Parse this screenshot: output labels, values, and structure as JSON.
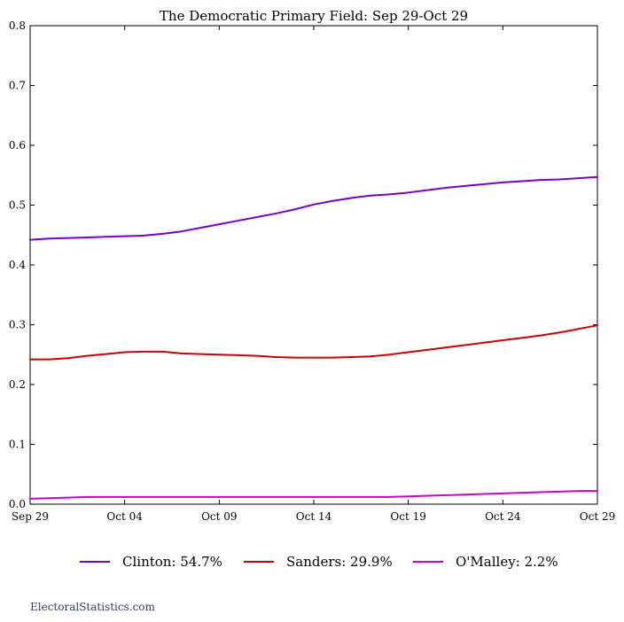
{
  "chart_data": {
    "type": "line",
    "title": "The Democratic Primary Field: Sep 29-Oct 29",
    "xlabel": "",
    "ylabel": "",
    "x_tick_labels": [
      "Sep 29",
      "Oct 04",
      "Oct 09",
      "Oct 14",
      "Oct 19",
      "Oct 24",
      "Oct 29"
    ],
    "x_tick_days": [
      0,
      5,
      10,
      15,
      20,
      25,
      30
    ],
    "xlim": [
      0,
      30
    ],
    "y_ticks": [
      0.0,
      0.1,
      0.2,
      0.3,
      0.4,
      0.5,
      0.6,
      0.7,
      0.8
    ],
    "y_tick_labels": [
      "0.0",
      "0.1",
      "0.2",
      "0.3",
      "0.4",
      "0.5",
      "0.6",
      "0.7",
      "0.8"
    ],
    "ylim": [
      0,
      0.8
    ],
    "grid": false,
    "legend_position": "bottom",
    "series": [
      {
        "name": "Clinton",
        "legend_label": "Clinton: 54.7%",
        "color": "#7700cc",
        "x": [
          0,
          1,
          2,
          3,
          4,
          5,
          6,
          7,
          8,
          9,
          10,
          11,
          12,
          13,
          14,
          15,
          16,
          17,
          18,
          19,
          20,
          21,
          22,
          23,
          24,
          25,
          26,
          27,
          28,
          29,
          30
        ],
        "y": [
          0.442,
          0.444,
          0.445,
          0.446,
          0.447,
          0.448,
          0.449,
          0.452,
          0.456,
          0.462,
          0.468,
          0.474,
          0.48,
          0.486,
          0.493,
          0.501,
          0.507,
          0.512,
          0.516,
          0.518,
          0.521,
          0.525,
          0.529,
          0.532,
          0.535,
          0.538,
          0.54,
          0.542,
          0.543,
          0.545,
          0.547
        ]
      },
      {
        "name": "Sanders",
        "legend_label": "Sanders: 29.9%",
        "color": "#cc0000",
        "x": [
          0,
          1,
          2,
          3,
          4,
          5,
          6,
          7,
          8,
          9,
          10,
          11,
          12,
          13,
          14,
          15,
          16,
          17,
          18,
          19,
          20,
          21,
          22,
          23,
          24,
          25,
          26,
          27,
          28,
          29,
          30
        ],
        "y": [
          0.242,
          0.242,
          0.244,
          0.248,
          0.251,
          0.254,
          0.255,
          0.255,
          0.252,
          0.251,
          0.25,
          0.249,
          0.248,
          0.246,
          0.245,
          0.245,
          0.245,
          0.246,
          0.247,
          0.25,
          0.254,
          0.258,
          0.262,
          0.266,
          0.27,
          0.274,
          0.278,
          0.282,
          0.287,
          0.293,
          0.299
        ]
      },
      {
        "name": "O'Malley",
        "legend_label": "O'Malley: 2.2%",
        "color": "#cc00cc",
        "x": [
          0,
          1,
          2,
          3,
          4,
          5,
          6,
          7,
          8,
          9,
          10,
          11,
          12,
          13,
          14,
          15,
          16,
          17,
          18,
          19,
          20,
          21,
          22,
          23,
          24,
          25,
          26,
          27,
          28,
          29,
          30
        ],
        "y": [
          0.009,
          0.01,
          0.011,
          0.012,
          0.012,
          0.012,
          0.012,
          0.012,
          0.012,
          0.012,
          0.012,
          0.012,
          0.012,
          0.012,
          0.012,
          0.012,
          0.012,
          0.012,
          0.012,
          0.012,
          0.013,
          0.014,
          0.015,
          0.016,
          0.017,
          0.018,
          0.019,
          0.02,
          0.021,
          0.022,
          0.022
        ]
      }
    ]
  },
  "footer": {
    "source": "ElectoralStatistics.com"
  }
}
